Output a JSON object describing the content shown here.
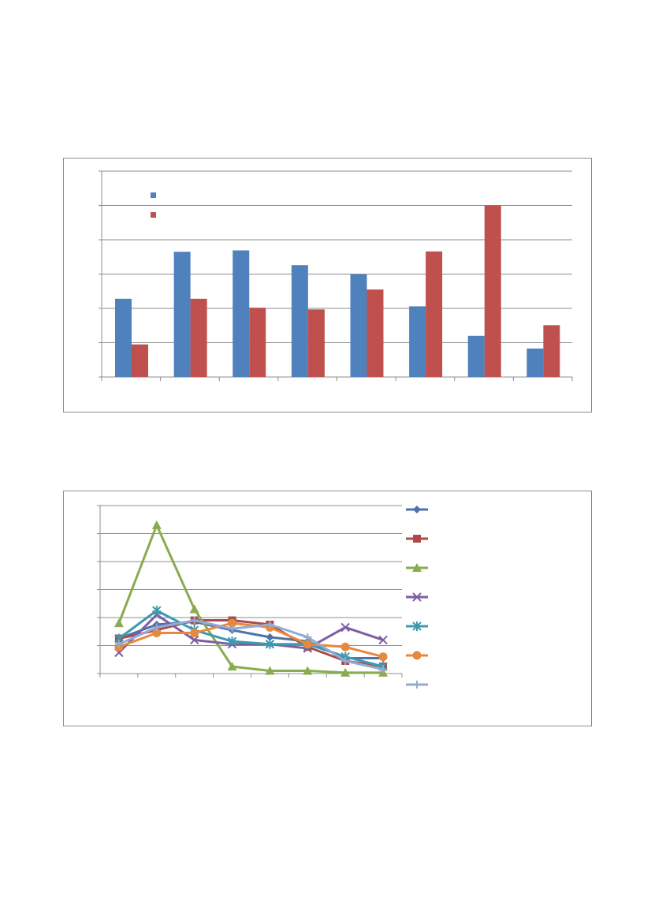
{
  "chart_data": [
    {
      "type": "bar",
      "title": "",
      "xlabel": "",
      "ylabel": "",
      "ylim": [
        0,
        6
      ],
      "grid": true,
      "legend_position": "top-left",
      "categories": [
        "",
        "",
        "",
        "",
        "",
        "",
        "",
        ""
      ],
      "series": [
        {
          "color": "#4f81bd",
          "values": [
            2.28,
            3.65,
            3.69,
            3.26,
            2.99,
            2.06,
            1.2,
            0.83
          ]
        },
        {
          "color": "#c0504d",
          "values": [
            0.95,
            2.28,
            2.02,
            1.97,
            2.55,
            3.66,
            5.0,
            1.51
          ]
        }
      ]
    },
    {
      "type": "line",
      "title": "",
      "xlabel": "",
      "ylabel": "",
      "ylim": [
        0,
        6
      ],
      "grid": true,
      "legend_position": "right",
      "x": [
        1,
        2,
        3,
        4,
        5,
        6,
        7,
        8
      ],
      "series": [
        {
          "color": "#4f72ad",
          "marker": "diamond",
          "values": [
            1.25,
            1.75,
            1.85,
            1.55,
            1.3,
            1.15,
            0.55,
            0.55
          ]
        },
        {
          "color": "#ad4a48",
          "marker": "square",
          "values": [
            1.25,
            1.55,
            1.9,
            1.9,
            1.75,
            0.95,
            0.45,
            0.25
          ]
        },
        {
          "color": "#8aab4e",
          "marker": "triangle",
          "values": [
            1.8,
            5.3,
            2.3,
            0.25,
            0.1,
            0.1,
            0.03,
            0.03
          ]
        },
        {
          "color": "#7e5ea3",
          "marker": "x",
          "values": [
            0.75,
            2.1,
            1.2,
            1.05,
            1.05,
            0.9,
            1.65,
            1.2
          ]
        },
        {
          "color": "#3b9bb0",
          "marker": "star",
          "values": [
            1.25,
            2.25,
            1.55,
            1.15,
            1.05,
            1.05,
            0.6,
            0.25
          ]
        },
        {
          "color": "#e8883c",
          "marker": "circle",
          "values": [
            0.95,
            1.45,
            1.45,
            1.8,
            1.65,
            1.05,
            0.95,
            0.6
          ]
        },
        {
          "color": "#93aad6",
          "marker": "plus",
          "values": [
            1.05,
            1.65,
            1.9,
            1.6,
            1.75,
            1.3,
            0.45,
            0.15
          ]
        }
      ]
    }
  ]
}
